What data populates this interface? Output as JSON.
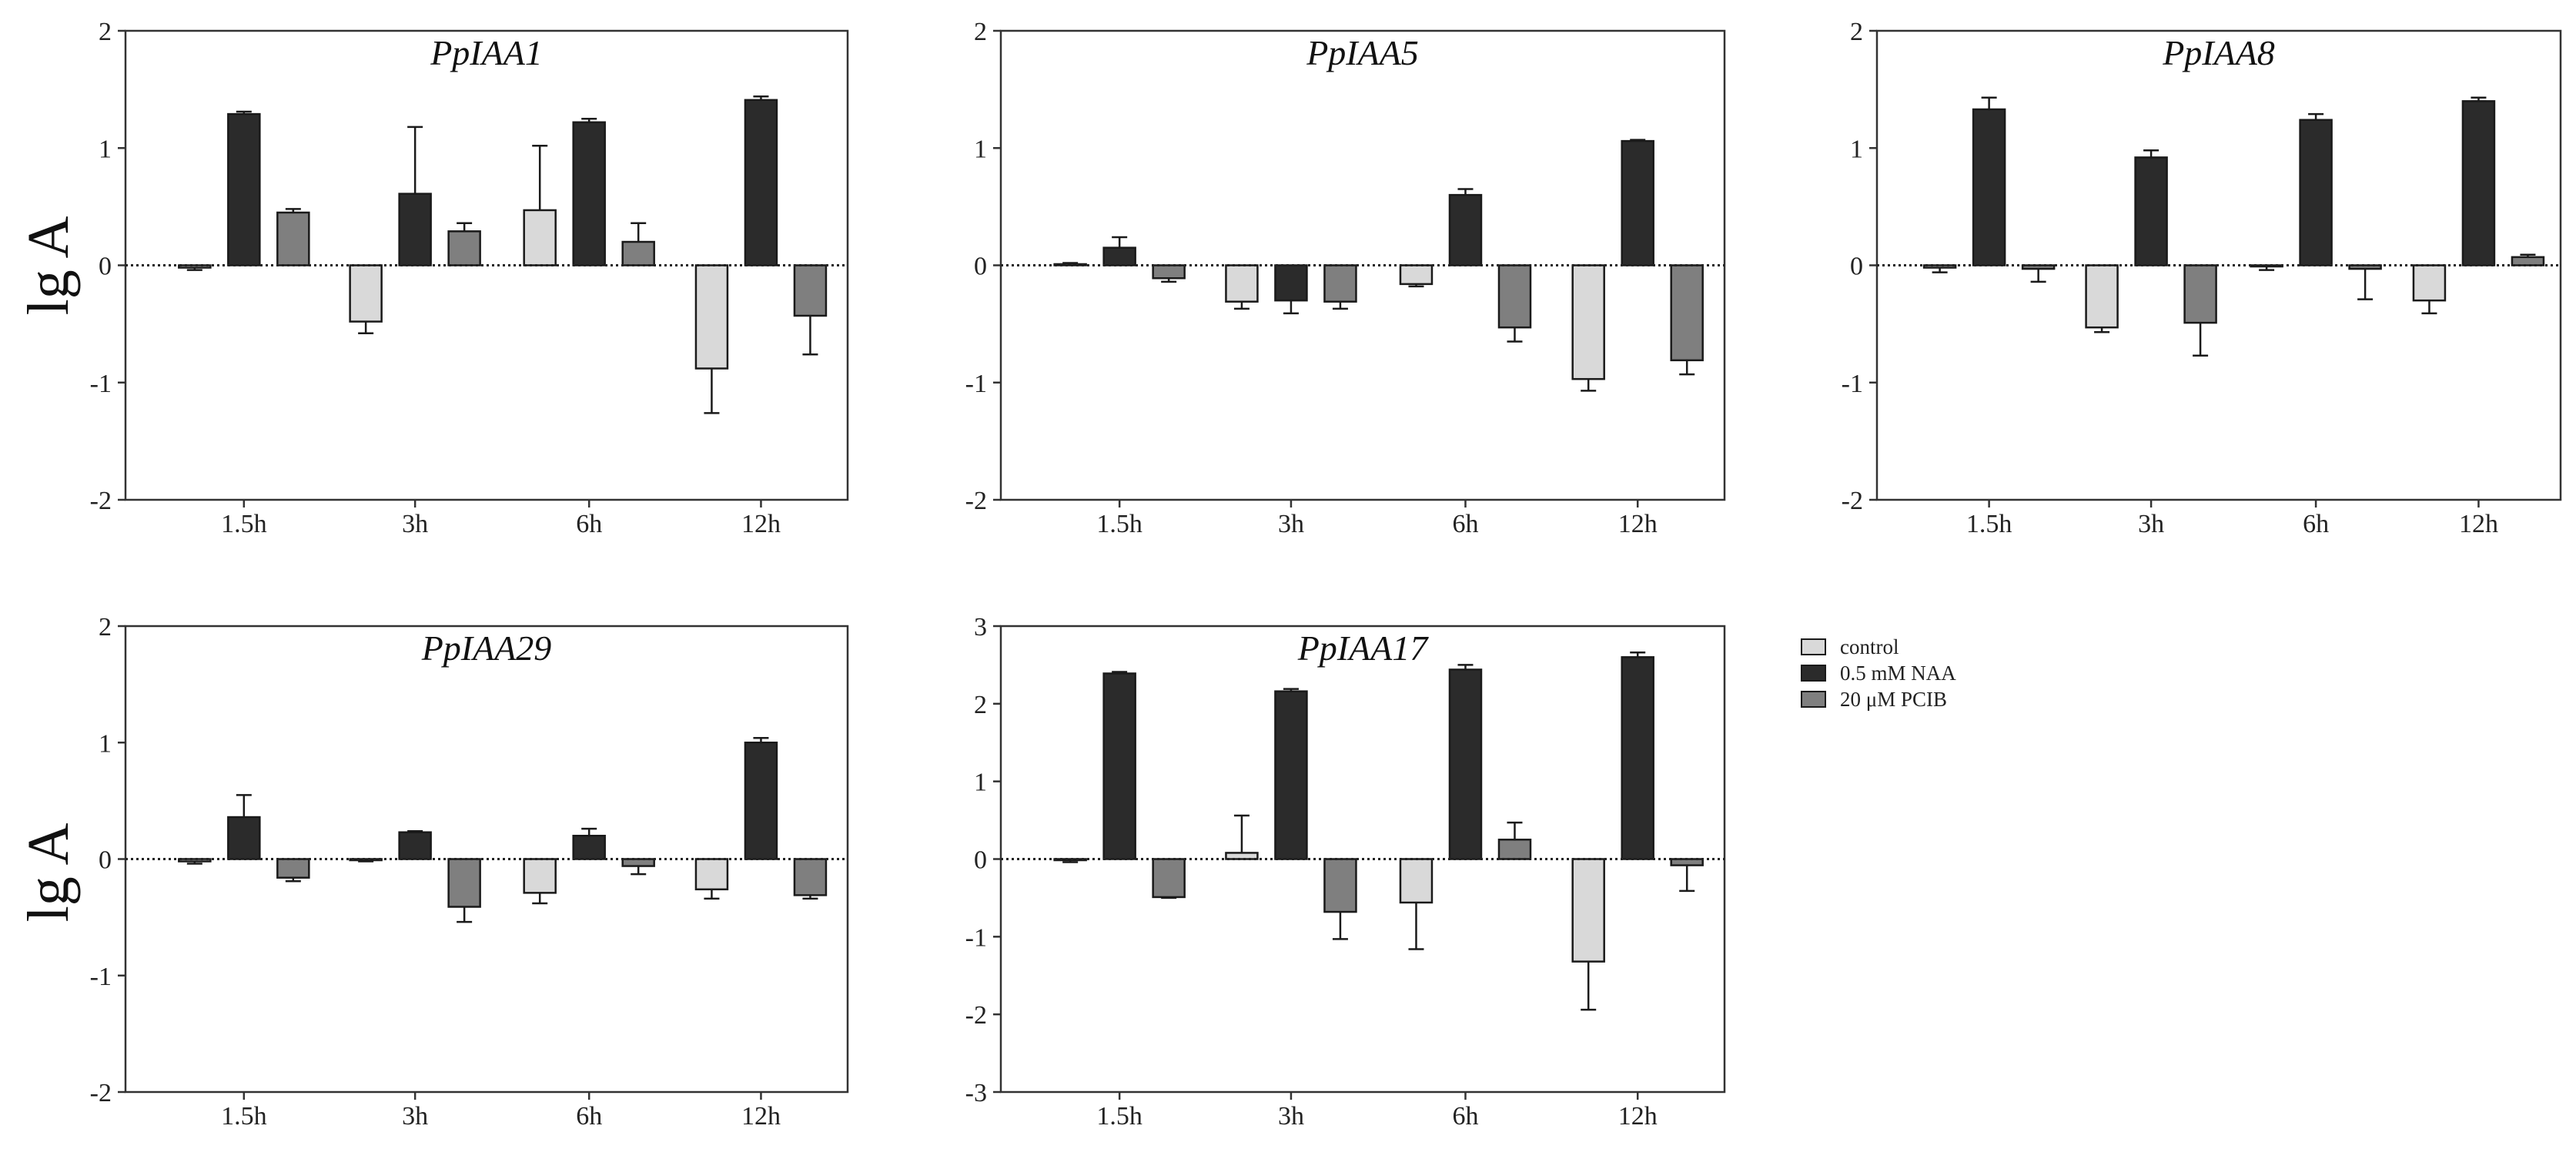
{
  "figure": {
    "ylabel": "lg A",
    "legend": [
      {
        "label": "control",
        "color": "#d9d9d9"
      },
      {
        "label": "0.5 mM NAA",
        "color": "#2b2b2b"
      },
      {
        "label": "20 μM PCIB",
        "color": "#7f7f7f"
      }
    ]
  },
  "chart_data": [
    {
      "type": "bar",
      "title": "PpIAA1",
      "categories": [
        "1.5h",
        "3h",
        "6h",
        "12h"
      ],
      "ylim": [
        -2,
        2
      ],
      "yticks": [
        -2,
        -1,
        0,
        1,
        2
      ],
      "series": [
        {
          "name": "control",
          "values": [
            -0.02,
            -0.48,
            0.47,
            -0.88
          ],
          "errors": [
            0.02,
            0.1,
            0.55,
            0.38
          ]
        },
        {
          "name": "0.5 mM NAA",
          "values": [
            1.29,
            0.61,
            1.22,
            1.41
          ],
          "errors": [
            0.02,
            0.57,
            0.03,
            0.03
          ]
        },
        {
          "name": "20 μM PCIB",
          "values": [
            0.45,
            0.29,
            0.2,
            -0.43
          ],
          "errors": [
            0.03,
            0.07,
            0.16,
            0.33
          ]
        }
      ]
    },
    {
      "type": "bar",
      "title": "PpIAA5",
      "categories": [
        "1.5h",
        "3h",
        "6h",
        "12h"
      ],
      "ylim": [
        -2,
        2
      ],
      "yticks": [
        -2,
        -1,
        0,
        1,
        2
      ],
      "series": [
        {
          "name": "control",
          "values": [
            0.01,
            -0.31,
            -0.16,
            -0.97
          ],
          "errors": [
            0.01,
            0.06,
            0.02,
            0.1
          ]
        },
        {
          "name": "0.5 mM NAA",
          "values": [
            0.15,
            -0.3,
            0.6,
            1.06
          ],
          "errors": [
            0.09,
            0.11,
            0.05,
            0.01
          ]
        },
        {
          "name": "20 μM PCIB",
          "values": [
            -0.11,
            -0.31,
            -0.53,
            -0.81
          ],
          "errors": [
            0.03,
            0.06,
            0.12,
            0.12
          ]
        }
      ]
    },
    {
      "type": "bar",
      "title": "PpIAA8",
      "categories": [
        "1.5h",
        "3h",
        "6h",
        "12h"
      ],
      "ylim": [
        -2,
        2
      ],
      "yticks": [
        -2,
        -1,
        0,
        1,
        2
      ],
      "series": [
        {
          "name": "control",
          "values": [
            -0.02,
            -0.53,
            -0.01,
            -0.3
          ],
          "errors": [
            0.04,
            0.04,
            0.03,
            0.11
          ]
        },
        {
          "name": "0.5 mM NAA",
          "values": [
            1.33,
            0.92,
            1.24,
            1.4
          ],
          "errors": [
            0.1,
            0.06,
            0.05,
            0.03
          ]
        },
        {
          "name": "20 μM PCIB",
          "values": [
            -0.03,
            -0.49,
            -0.03,
            0.07
          ],
          "errors": [
            0.11,
            0.28,
            0.26,
            0.02
          ]
        }
      ]
    },
    {
      "type": "bar",
      "title": "PpIAA29",
      "categories": [
        "1.5h",
        "3h",
        "6h",
        "12h"
      ],
      "ylim": [
        -2,
        2
      ],
      "yticks": [
        -2,
        -1,
        0,
        1,
        2
      ],
      "series": [
        {
          "name": "control",
          "values": [
            -0.02,
            -0.01,
            -0.29,
            -0.26
          ],
          "errors": [
            0.02,
            0.01,
            0.09,
            0.08
          ]
        },
        {
          "name": "0.5 mM NAA",
          "values": [
            0.36,
            0.23,
            0.2,
            1.0
          ],
          "errors": [
            0.19,
            0.01,
            0.06,
            0.04
          ]
        },
        {
          "name": "20 μM PCIB",
          "values": [
            -0.16,
            -0.41,
            -0.06,
            -0.31
          ],
          "errors": [
            0.03,
            0.13,
            0.07,
            0.03
          ]
        }
      ]
    },
    {
      "type": "bar",
      "title": "PpIAA17",
      "categories": [
        "1.5h",
        "3h",
        "6h",
        "12h"
      ],
      "ylim": [
        -3,
        3
      ],
      "yticks": [
        -3,
        -2,
        -1,
        0,
        1,
        2,
        3
      ],
      "series": [
        {
          "name": "control",
          "values": [
            -0.01,
            0.08,
            -0.56,
            -1.32
          ],
          "errors": [
            0.03,
            0.48,
            0.6,
            0.62
          ]
        },
        {
          "name": "0.5 mM NAA",
          "values": [
            2.39,
            2.16,
            2.44,
            2.6
          ],
          "errors": [
            0.02,
            0.03,
            0.06,
            0.06
          ]
        },
        {
          "name": "20 μM PCIB",
          "values": [
            -0.49,
            -0.68,
            0.25,
            -0.08
          ],
          "errors": [
            0.01,
            0.35,
            0.22,
            0.33
          ]
        }
      ]
    }
  ]
}
